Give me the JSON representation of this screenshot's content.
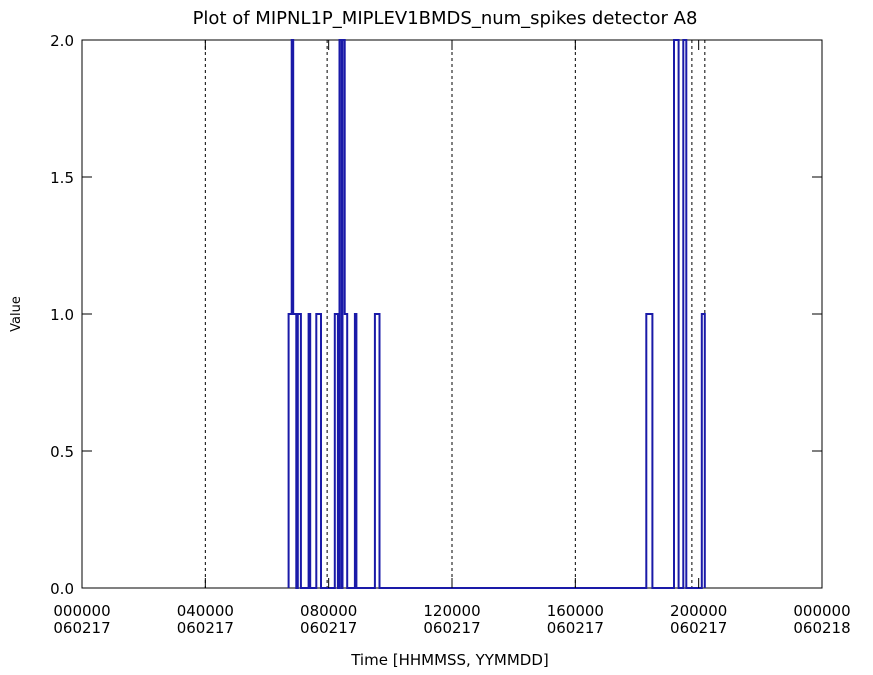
{
  "chart_data": {
    "type": "line",
    "title": "Plot of MIPNL1P_MIPLEV1BMDS_num_spikes detector A8",
    "xlabel": "Time [HHMMSS, YYMMDD]",
    "ylabel": "Value",
    "xlim": [
      0,
      24
    ],
    "ylim": [
      0,
      2
    ],
    "x_unit": "hours from 000000 060217",
    "x_ticks": [
      {
        "value": 0,
        "line1": "000000",
        "line2": "060217"
      },
      {
        "value": 4,
        "line1": "040000",
        "line2": "060217"
      },
      {
        "value": 8,
        "line1": "080000",
        "line2": "060217"
      },
      {
        "value": 12,
        "line1": "120000",
        "line2": "060217"
      },
      {
        "value": 16,
        "line1": "160000",
        "line2": "060217"
      },
      {
        "value": 20,
        "line1": "200000",
        "line2": "060217"
      },
      {
        "value": 24,
        "line1": "000000",
        "line2": "060218"
      }
    ],
    "y_ticks": [
      "0.0",
      "0.5",
      "1.0",
      "1.5",
      "2.0"
    ],
    "y_tick_values": [
      0,
      0.5,
      1.0,
      1.5,
      2.0
    ],
    "vlines_dashed": [
      4.0,
      7.95,
      12.0,
      16.0,
      19.78,
      20.2
    ],
    "line_color": "#1a1aa8",
    "grid": false,
    "series": [
      {
        "points": [
          [
            6.7,
            0
          ],
          [
            6.7,
            1
          ],
          [
            6.8,
            1
          ],
          [
            6.8,
            2
          ],
          [
            6.85,
            2
          ],
          [
            6.85,
            1
          ],
          [
            6.95,
            1
          ],
          [
            6.95,
            0
          ],
          [
            7.0,
            0
          ],
          [
            7.0,
            1
          ],
          [
            7.1,
            1
          ],
          [
            7.1,
            0
          ],
          [
            7.35,
            0
          ],
          [
            7.35,
            1
          ],
          [
            7.4,
            1
          ],
          [
            7.4,
            0
          ],
          [
            7.6,
            0
          ],
          [
            7.6,
            1
          ],
          [
            7.7,
            1
          ],
          [
            7.7,
            1
          ],
          [
            7.75,
            1
          ],
          [
            7.75,
            0
          ],
          [
            8.2,
            0
          ],
          [
            8.2,
            1
          ],
          [
            8.3,
            1
          ],
          [
            8.3,
            0
          ],
          [
            8.35,
            0
          ],
          [
            8.35,
            2
          ],
          [
            8.42,
            2
          ],
          [
            8.42,
            0
          ],
          [
            8.45,
            0
          ],
          [
            8.45,
            2
          ],
          [
            8.52,
            2
          ],
          [
            8.52,
            1
          ],
          [
            8.6,
            1
          ],
          [
            8.6,
            0
          ],
          [
            8.85,
            0
          ],
          [
            8.85,
            1
          ],
          [
            8.9,
            1
          ],
          [
            8.9,
            0
          ],
          [
            9.5,
            0
          ],
          [
            9.5,
            1
          ],
          [
            9.65,
            1
          ],
          [
            9.65,
            0
          ],
          [
            18.3,
            0
          ],
          [
            18.3,
            1
          ],
          [
            18.5,
            1
          ],
          [
            18.5,
            0
          ],
          [
            19.2,
            0
          ],
          [
            19.2,
            2
          ],
          [
            19.35,
            2
          ],
          [
            19.35,
            0
          ],
          [
            19.5,
            0
          ],
          [
            19.5,
            2
          ],
          [
            19.6,
            2
          ],
          [
            19.6,
            0
          ],
          [
            20.1,
            0
          ],
          [
            20.1,
            1
          ],
          [
            20.2,
            1
          ],
          [
            20.2,
            0
          ]
        ]
      }
    ]
  }
}
